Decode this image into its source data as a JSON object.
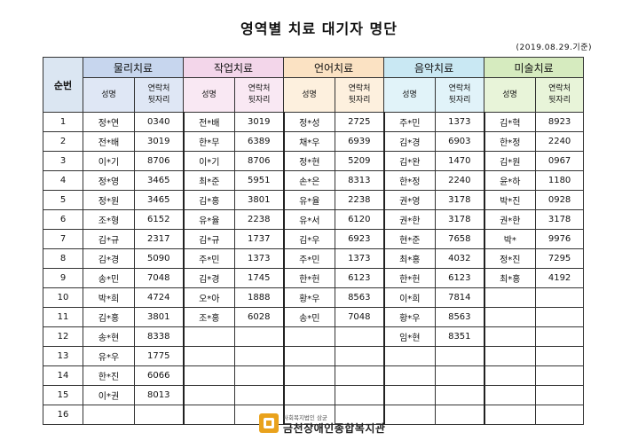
{
  "title": "영역별 치료 대기자 명단",
  "date": "(2019.08.29.기준)",
  "header": {
    "no_label": "순번",
    "groups": [
      "물리치료",
      "작업치료",
      "언어치료",
      "음악치료",
      "미술치료"
    ],
    "name_label": "성명",
    "phone_label": "연락처\n뒷자리"
  },
  "colors": {
    "physical": "#c7d6ee",
    "occupational": "#f3d6ea",
    "speech": "#fbe2c3",
    "music": "#c9e8f3",
    "art": "#d6ebbf",
    "logo": "#e9a21c"
  },
  "rows": [
    [
      "1",
      "정*연",
      "0340",
      "전*배",
      "3019",
      "정*성",
      "2725",
      "주*민",
      "1373",
      "김*혁",
      "8923"
    ],
    [
      "2",
      "전*배",
      "3019",
      "한*무",
      "6389",
      "채*우",
      "6939",
      "김*경",
      "6903",
      "한*정",
      "2240"
    ],
    [
      "3",
      "이*기",
      "8706",
      "이*기",
      "8706",
      "정*현",
      "5209",
      "김*완",
      "1470",
      "김*원",
      "0967"
    ],
    [
      "4",
      "정*영",
      "3465",
      "최*준",
      "5951",
      "손*은",
      "8313",
      "한*정",
      "2240",
      "윤*하",
      "1180"
    ],
    [
      "5",
      "정*원",
      "3465",
      "김*홍",
      "3801",
      "유*율",
      "2238",
      "권*영",
      "3178",
      "박*진",
      "0928"
    ],
    [
      "6",
      "조*형",
      "6152",
      "유*율",
      "2238",
      "유*서",
      "6120",
      "권*한",
      "3178",
      "권*한",
      "3178"
    ],
    [
      "7",
      "김*규",
      "2317",
      "김*규",
      "1737",
      "김*우",
      "6923",
      "현*준",
      "7658",
      "박*",
      "9976"
    ],
    [
      "8",
      "김*경",
      "5090",
      "주*민",
      "1373",
      "주*민",
      "1373",
      "최*홍",
      "4032",
      "정*진",
      "7295"
    ],
    [
      "9",
      "송*민",
      "7048",
      "김*경",
      "1745",
      "한*헌",
      "6123",
      "한*헌",
      "6123",
      "최*홍",
      "4192"
    ],
    [
      "10",
      "박*희",
      "4724",
      "오*아",
      "1888",
      "황*우",
      "8563",
      "이*희",
      "7814",
      "",
      ""
    ],
    [
      "11",
      "김*홍",
      "3801",
      "조*홍",
      "6028",
      "송*민",
      "7048",
      "황*우",
      "8563",
      "",
      ""
    ],
    [
      "12",
      "송*현",
      "8338",
      "",
      "",
      "",
      "",
      "임*현",
      "8351",
      "",
      ""
    ],
    [
      "13",
      "유*우",
      "1775",
      "",
      "",
      "",
      "",
      "",
      "",
      "",
      ""
    ],
    [
      "14",
      "한*진",
      "6066",
      "",
      "",
      "",
      "",
      "",
      "",
      "",
      ""
    ],
    [
      "15",
      "이*권",
      "8013",
      "",
      "",
      "",
      "",
      "",
      "",
      "",
      ""
    ],
    [
      "16",
      "",
      "",
      "",
      "",
      "",
      "",
      "",
      "",
      "",
      ""
    ]
  ],
  "footer": {
    "org_sub": "사회복지법인 삼균",
    "org_name": "금천장애인종합복지관"
  }
}
